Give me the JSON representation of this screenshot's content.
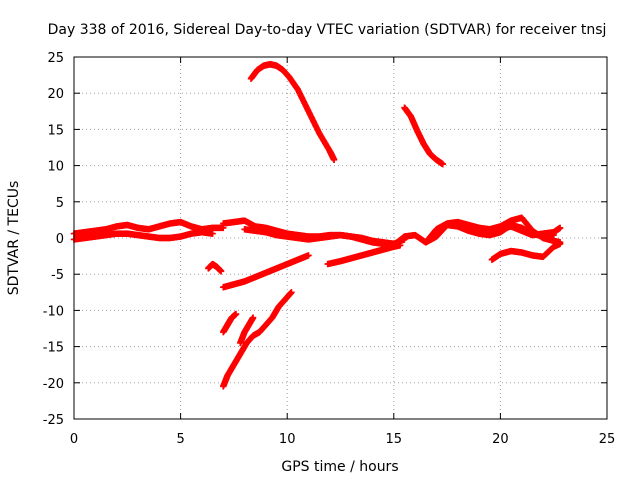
{
  "chart_data": {
    "type": "scatter",
    "title": "Day 338 of 2016, Sidereal Day-to-day VTEC variation (SDTVAR) for receiver tnsj",
    "xlabel": "GPS time / hours",
    "ylabel": "SDTVAR / TECUs",
    "xlim": [
      0,
      25
    ],
    "ylim": [
      -25,
      25
    ],
    "xticks": [
      0,
      5,
      10,
      15,
      20,
      25
    ],
    "yticks": [
      -25,
      -20,
      -15,
      -10,
      -5,
      0,
      5,
      10,
      15,
      20,
      25
    ],
    "grid": true,
    "legend": "none",
    "marker": "plus",
    "color": "#ff0000",
    "series": [
      {
        "x": [
          0.0,
          0.5,
          1.0,
          1.5,
          2.0,
          2.5,
          3.0,
          3.5,
          4.0,
          4.5,
          5.0,
          5.5,
          6.0,
          6.5,
          7.0
        ],
        "y": [
          0.6,
          0.8,
          1.0,
          1.2,
          1.6,
          1.8,
          1.4,
          1.2,
          1.6,
          2.0,
          2.2,
          1.6,
          1.2,
          1.4,
          1.4
        ]
      },
      {
        "x": [
          0.0,
          0.5,
          1.0,
          1.5,
          2.0,
          2.5,
          3.0,
          3.5,
          4.0,
          4.5,
          5.0,
          5.5,
          6.0,
          6.5
        ],
        "y": [
          -0.2,
          0.0,
          0.2,
          0.4,
          0.6,
          0.6,
          0.4,
          0.2,
          0.0,
          0.0,
          0.2,
          0.6,
          0.8,
          0.6
        ]
      },
      {
        "x": [
          7.0,
          7.5,
          8.0,
          8.5,
          9.0,
          9.5,
          10.0,
          10.5,
          11.0,
          11.5,
          12.0,
          12.5,
          13.0,
          13.5,
          14.0,
          14.5,
          15.0,
          15.5
        ],
        "y": [
          2.0,
          2.2,
          2.4,
          1.6,
          1.4,
          1.0,
          0.6,
          0.4,
          0.2,
          0.2,
          0.4,
          0.4,
          0.2,
          0.0,
          -0.4,
          -0.6,
          -0.8,
          -0.2
        ]
      },
      {
        "x": [
          8.0,
          8.5,
          9.0,
          9.5,
          10.0,
          10.5,
          11.0,
          11.5,
          12.0,
          12.5,
          13.0,
          13.5,
          14.0,
          14.5,
          15.0,
          15.5,
          16.0,
          16.5,
          17.0,
          17.5,
          18.0,
          18.5,
          19.0,
          19.5,
          20.0,
          20.5,
          21.0,
          21.5,
          22.0,
          22.5
        ],
        "y": [
          1.2,
          1.0,
          0.8,
          0.4,
          0.2,
          0.0,
          -0.2,
          0.0,
          0.2,
          0.4,
          0.2,
          -0.2,
          -0.6,
          -0.8,
          -1.0,
          0.2,
          0.4,
          -0.6,
          0.2,
          1.8,
          1.6,
          1.0,
          0.6,
          0.4,
          0.8,
          1.8,
          1.4,
          0.6,
          0.2,
          0.4
        ]
      },
      {
        "x": [
          16.5,
          17.0,
          17.5,
          18.0,
          18.5,
          19.0,
          19.5,
          20.0,
          20.5,
          21.0,
          21.5,
          22.0,
          22.5,
          22.8
        ],
        "y": [
          -0.6,
          1.2,
          2.0,
          2.2,
          1.8,
          1.4,
          1.2,
          1.6,
          2.4,
          2.8,
          1.0,
          0.0,
          -0.4,
          -0.6
        ]
      },
      {
        "x": [
          19.6,
          20.0,
          20.5,
          21.0,
          21.5,
          22.0,
          22.5,
          22.8
        ],
        "y": [
          -3.0,
          -2.2,
          -1.8,
          -2.0,
          -2.4,
          -2.6,
          -1.2,
          -0.8
        ]
      },
      {
        "x": [
          19.5,
          20.0,
          20.5,
          21.0,
          21.5,
          22.0,
          22.5,
          22.8
        ],
        "y": [
          0.6,
          1.2,
          1.6,
          1.0,
          0.4,
          0.6,
          0.8,
          1.4
        ]
      },
      {
        "x": [
          7.0,
          7.5,
          8.0,
          8.5,
          9.0,
          9.5,
          10.0,
          10.5,
          11.0
        ],
        "y": [
          -6.8,
          -6.4,
          -6.0,
          -5.4,
          -4.8,
          -4.2,
          -3.6,
          -3.0,
          -2.4
        ]
      },
      {
        "x": [
          11.9,
          12.5,
          13.0,
          13.5,
          14.0,
          14.5,
          15.0,
          15.3
        ],
        "y": [
          -3.6,
          -3.2,
          -2.8,
          -2.4,
          -2.0,
          -1.6,
          -1.2,
          -1.0
        ]
      },
      {
        "x": [
          6.3,
          6.5,
          6.7,
          6.9
        ],
        "y": [
          -4.2,
          -3.6,
          -4.0,
          -4.6
        ]
      },
      {
        "x": [
          7.0,
          7.2,
          7.4,
          7.6
        ],
        "y": [
          -13.0,
          -12.0,
          -11.0,
          -10.5
        ]
      },
      {
        "x": [
          7.0,
          7.2,
          7.5,
          7.8,
          8.1,
          8.4,
          8.7,
          9.0,
          9.3,
          9.6,
          9.9,
          10.2
        ],
        "y": [
          -20.5,
          -19.0,
          -17.5,
          -16.0,
          -14.5,
          -13.5,
          -13.0,
          -12.0,
          -11.0,
          -9.5,
          -8.5,
          -7.5
        ]
      },
      {
        "x": [
          7.8,
          8.0,
          8.2,
          8.4
        ],
        "y": [
          -14.5,
          -13.0,
          -12.0,
          -11.0
        ]
      },
      {
        "x": [
          8.3,
          8.6,
          8.9,
          9.2,
          9.5,
          9.8,
          10.1,
          10.5,
          11.0,
          11.5,
          12.0,
          12.2
        ],
        "y": [
          22.0,
          23.2,
          23.8,
          24.0,
          23.8,
          23.2,
          22.2,
          20.5,
          17.5,
          14.5,
          12.0,
          10.8
        ]
      },
      {
        "x": [
          15.5,
          15.8,
          16.1,
          16.4,
          16.7,
          17.0,
          17.3
        ],
        "y": [
          18.0,
          16.8,
          14.8,
          13.0,
          11.6,
          10.8,
          10.2
        ]
      }
    ]
  }
}
